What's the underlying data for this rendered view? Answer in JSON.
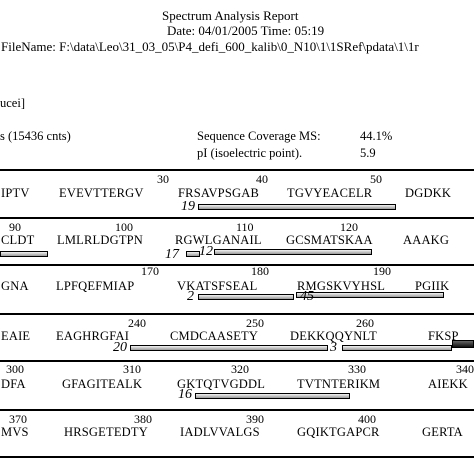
{
  "report": {
    "title": "Spectrum Analysis Report",
    "date_line": "Date: 04/01/2005  Time: 05:19",
    "filename_line": "FileName: F:\\data\\Leo\\31_03_05\\P4_defi_600_kalib\\0_N10\\1\\1SRef\\pdata\\1\\1r"
  },
  "protein_name_fragment": "ucei]",
  "stats": {
    "counts_fragment": "s (15436 cnts)",
    "coverage_label": "Sequence Coverage MS:",
    "coverage_value": "44.1%",
    "pi_label": "pI (isoelectric point).",
    "pi_value": "5.9"
  },
  "sequence_rows": [
    {
      "numbers": [
        "30",
        "40",
        "50"
      ],
      "segments": [
        "IPTV",
        "EVEVTTERGV",
        "FRSAVPSGAB",
        "TGVYEACELR",
        "DGDKK"
      ],
      "peptides": [
        "19"
      ]
    },
    {
      "numbers": [
        "90",
        "100",
        "110",
        "120"
      ],
      "segments": [
        "CLDT",
        "LMLRLDGTPN",
        "RGWLGANAIL",
        "GCSMATSKAA",
        "AAAKG"
      ],
      "peptides": [
        "17",
        "12"
      ]
    },
    {
      "numbers": [
        "170",
        "180",
        "190"
      ],
      "segments": [
        "GNA",
        "LPFQEFMIAP",
        "VKATSFSEAL",
        "RMGSKVYHSL",
        "PGIIK"
      ],
      "peptides": [
        "2",
        "45"
      ]
    },
    {
      "numbers": [
        "240",
        "250",
        "260"
      ],
      "segments": [
        "EAIE",
        "EAGHRGFAI",
        "CMDCAASETY",
        "DEKKQQYNLT",
        "FKSP"
      ],
      "peptides": [
        "20",
        "3"
      ]
    },
    {
      "numbers": [
        "300",
        "310",
        "320",
        "330",
        "340"
      ],
      "segments": [
        "DFA",
        "GFAGITEALK",
        "GKTQTVGDDL",
        "TVTNTERIKM",
        "AIEKK"
      ],
      "peptides": [
        "16"
      ]
    },
    {
      "numbers": [
        "370",
        "380",
        "390",
        "400"
      ],
      "segments": [
        "MVS",
        "HRSGETEDTY",
        "IADLVVALGS",
        "GQIKTGAPCR",
        "GERTA"
      ],
      "peptides": []
    }
  ]
}
